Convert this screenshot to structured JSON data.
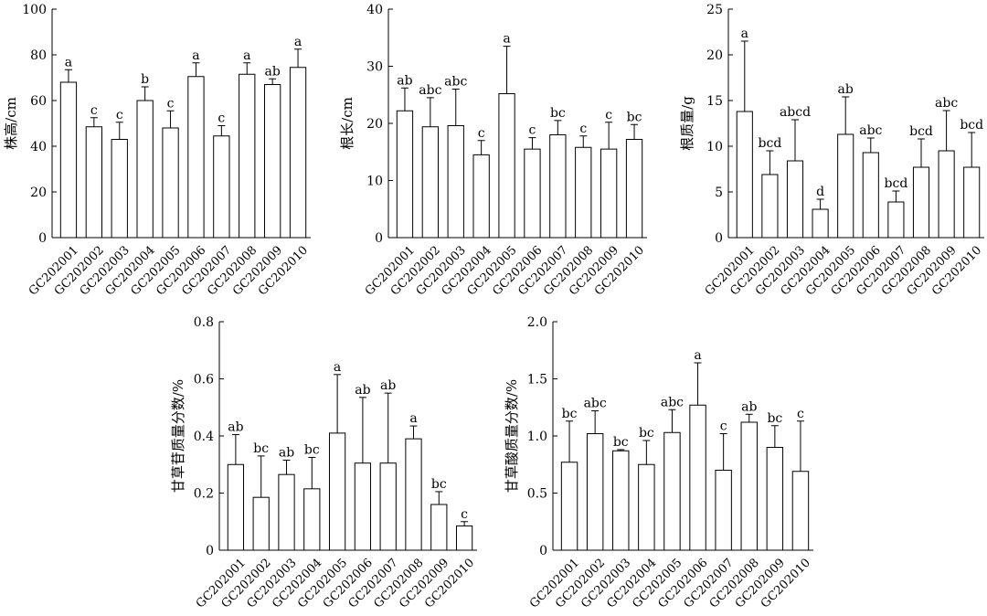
{
  "chart_data": [
    {
      "type": "bar",
      "ylabel": "株高/cm",
      "ylim": [
        0,
        100
      ],
      "yticks": [
        0,
        20,
        40,
        60,
        80,
        100
      ],
      "categories": [
        "GC202001",
        "GC202002",
        "GC202003",
        "GC202004",
        "GC202005",
        "GC202006",
        "GC202007",
        "GC202008",
        "GC202009",
        "GC202010"
      ],
      "values": [
        68,
        48.5,
        43,
        60,
        48,
        70.5,
        44.5,
        71.5,
        67,
        74.5
      ],
      "error_upper": [
        73.5,
        52.5,
        50.5,
        66,
        55.5,
        76.5,
        49,
        76.5,
        69.5,
        82.5
      ],
      "labels": [
        "a",
        "c",
        "c",
        "b",
        "c",
        "a",
        "c",
        "a",
        "ab",
        "a"
      ]
    },
    {
      "type": "bar",
      "ylabel": "根长/cm",
      "ylim": [
        0,
        40
      ],
      "yticks": [
        0,
        10,
        20,
        30,
        40
      ],
      "categories": [
        "GC202001",
        "GC202002",
        "GC202003",
        "GC202004",
        "GC202005",
        "GC202006",
        "GC202007",
        "GC202008",
        "GC202009",
        "GC202010"
      ],
      "values": [
        22.2,
        19.4,
        19.6,
        14.5,
        25.2,
        15.5,
        18,
        15.8,
        15.5,
        17.2
      ],
      "error_upper": [
        26.2,
        24.5,
        26,
        17,
        33.5,
        17.5,
        20.5,
        17.8,
        20.2,
        19.8
      ],
      "labels": [
        "ab",
        "abc",
        "abc",
        "c",
        "a",
        "c",
        "bc",
        "c",
        "c",
        "bc"
      ]
    },
    {
      "type": "bar",
      "ylabel": "根质量/g",
      "ylim": [
        0,
        25
      ],
      "yticks": [
        0,
        5,
        10,
        15,
        20,
        25
      ],
      "categories": [
        "GC202001",
        "GC202002",
        "GC202003",
        "GC202004",
        "GC202005",
        "GC202006",
        "GC202007",
        "GC202008",
        "GC202009",
        "GC202010"
      ],
      "values": [
        13.8,
        6.9,
        8.4,
        3.1,
        11.3,
        9.3,
        3.9,
        7.7,
        9.5,
        7.7
      ],
      "error_upper": [
        21.5,
        9.5,
        12.9,
        4.2,
        15.4,
        10.9,
        5.1,
        10.8,
        13.9,
        11.5
      ],
      "labels": [
        "a",
        "bcd",
        "abcd",
        "d",
        "ab",
        "abc",
        "bcd",
        "bcd",
        "abc",
        "bcd"
      ]
    },
    {
      "type": "bar",
      "ylabel": "甘草苷质量分数/%",
      "ylim": [
        0,
        0.8
      ],
      "yticks": [
        0,
        0.2,
        0.4,
        0.6,
        0.8
      ],
      "categories": [
        "GC202001",
        "GC202002",
        "GC202003",
        "GC202004",
        "GC202005",
        "GC202006",
        "GC202007",
        "GC202008",
        "GC202009",
        "GC202010"
      ],
      "values": [
        0.3,
        0.185,
        0.265,
        0.215,
        0.41,
        0.305,
        0.305,
        0.39,
        0.16,
        0.085
      ],
      "error_upper": [
        0.405,
        0.33,
        0.315,
        0.325,
        0.615,
        0.535,
        0.55,
        0.435,
        0.205,
        0.1
      ],
      "labels": [
        "ab",
        "bc",
        "ab",
        "bc",
        "a",
        "ab",
        "ab",
        "a",
        "bc",
        "c"
      ]
    },
    {
      "type": "bar",
      "ylabel": "甘草酸质量分数/%",
      "ylim": [
        0,
        2.0
      ],
      "yticks": [
        0,
        0.5,
        1.0,
        1.5,
        2.0
      ],
      "categories": [
        "GC202001",
        "GC202002",
        "GC202003",
        "GC202004",
        "GC202005",
        "GC202006",
        "GC202007",
        "GC202008",
        "GC202009",
        "GC202010"
      ],
      "values": [
        0.77,
        1.02,
        0.87,
        0.75,
        1.03,
        1.27,
        0.7,
        1.12,
        0.9,
        0.69
      ],
      "error_upper": [
        1.13,
        1.22,
        0.88,
        0.96,
        1.23,
        1.64,
        1.02,
        1.19,
        1.09,
        1.13
      ],
      "labels": [
        "bc",
        "abc",
        "bc",
        "bc",
        "abc",
        "a",
        "c",
        "ab",
        "bc",
        "c"
      ]
    }
  ]
}
